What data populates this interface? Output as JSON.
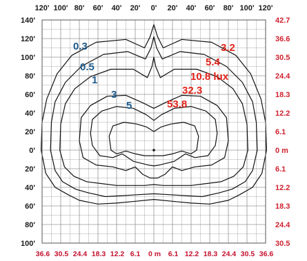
{
  "chart_data": {
    "type": "polar-isolux",
    "top_axis_labels": [
      "120'",
      "100'",
      "80'",
      "60'",
      "40'",
      "20'",
      "0'",
      "20'",
      "40'",
      "60'",
      "80'",
      "100'",
      "120'"
    ],
    "left_axis_labels": [
      "140'",
      "120'",
      "100'",
      "80'",
      "60'",
      "40'",
      "20'",
      "0'",
      "20'",
      "40'",
      "60'",
      "80'",
      "100'"
    ],
    "bottom_axis_labels": [
      "36.6",
      "30.5",
      "24.4",
      "18.3",
      "12.2",
      "6.1",
      "0 m",
      "6.1",
      "12.2",
      "18.3",
      "24.4",
      "30.5",
      "36.6"
    ],
    "right_axis_labels": [
      "42.7",
      "36.6",
      "30.5",
      "24.4",
      "18.3",
      "12.2",
      "6.1",
      "0 m",
      "6.1",
      "12.2",
      "18.3",
      "24.4",
      "30.5"
    ],
    "x_range_ft": [
      -120,
      120
    ],
    "y_range_ft": [
      -100,
      140
    ],
    "grid": true,
    "isolux_labels_fc": [
      "0.3",
      "0.5",
      "1",
      "3",
      "5"
    ],
    "isolux_labels_lux": [
      "3.2",
      "5.4",
      "10.8 lux",
      "32.3",
      "53.8"
    ],
    "isolux_levels": [
      {
        "fc": 0.3,
        "lux": 3.2
      },
      {
        "fc": 0.5,
        "lux": 5.4
      },
      {
        "fc": 1,
        "lux": 10.8
      },
      {
        "fc": 3,
        "lux": 32.3
      },
      {
        "fc": 5,
        "lux": 53.8
      }
    ],
    "contours": [
      {
        "level_fc": 0.3,
        "points": [
          [
            -120,
            30
          ],
          [
            -115,
            55
          ],
          [
            -104,
            82
          ],
          [
            -88,
            102
          ],
          [
            -62,
            116
          ],
          [
            -30,
            119
          ],
          [
            -10,
            110
          ],
          [
            -4,
            122
          ],
          [
            0,
            135
          ],
          [
            4,
            122
          ],
          [
            10,
            110
          ],
          [
            30,
            119
          ],
          [
            62,
            116
          ],
          [
            88,
            102
          ],
          [
            104,
            82
          ],
          [
            115,
            55
          ],
          [
            120,
            30
          ],
          [
            121,
            0
          ],
          [
            116,
            -25
          ],
          [
            106,
            -40
          ],
          [
            92,
            -48
          ],
          [
            80,
            -54
          ],
          [
            60,
            -58
          ],
          [
            40,
            -57
          ],
          [
            20,
            -55
          ],
          [
            0,
            -53
          ],
          [
            -20,
            -55
          ],
          [
            -40,
            -57
          ],
          [
            -60,
            -58
          ],
          [
            -80,
            -54
          ],
          [
            -92,
            -48
          ],
          [
            -106,
            -40
          ],
          [
            -116,
            -25
          ],
          [
            -121,
            0
          ],
          [
            -120,
            30
          ]
        ]
      },
      {
        "level_fc": 0.5,
        "points": [
          [
            -110,
            30
          ],
          [
            -106,
            52
          ],
          [
            -95,
            73
          ],
          [
            -78,
            90
          ],
          [
            -54,
            103
          ],
          [
            -28,
            106
          ],
          [
            -9,
            98
          ],
          [
            -3,
            110
          ],
          [
            0,
            122
          ],
          [
            3,
            110
          ],
          [
            9,
            98
          ],
          [
            28,
            106
          ],
          [
            54,
            103
          ],
          [
            78,
            90
          ],
          [
            95,
            73
          ],
          [
            106,
            52
          ],
          [
            110,
            30
          ],
          [
            111,
            0
          ],
          [
            106,
            -22
          ],
          [
            98,
            -34
          ],
          [
            84,
            -42
          ],
          [
            70,
            -46
          ],
          [
            52,
            -50
          ],
          [
            34,
            -49
          ],
          [
            18,
            -48
          ],
          [
            0,
            -47
          ],
          [
            -18,
            -48
          ],
          [
            -34,
            -49
          ],
          [
            -52,
            -50
          ],
          [
            -70,
            -46
          ],
          [
            -84,
            -42
          ],
          [
            -98,
            -34
          ],
          [
            -106,
            -22
          ],
          [
            -111,
            0
          ],
          [
            -110,
            30
          ]
        ]
      },
      {
        "level_fc": 1,
        "points": [
          [
            -100,
            28
          ],
          [
            -95,
            50
          ],
          [
            -85,
            66
          ],
          [
            -68,
            79
          ],
          [
            -46,
            87
          ],
          [
            -22,
            87
          ],
          [
            -7,
            78
          ],
          [
            -2,
            90
          ],
          [
            0,
            100
          ],
          [
            2,
            90
          ],
          [
            7,
            78
          ],
          [
            22,
            87
          ],
          [
            46,
            87
          ],
          [
            68,
            79
          ],
          [
            85,
            66
          ],
          [
            95,
            50
          ],
          [
            100,
            28
          ],
          [
            101,
            0
          ],
          [
            96,
            -18
          ],
          [
            86,
            -28
          ],
          [
            72,
            -34
          ],
          [
            56,
            -36
          ],
          [
            40,
            -38
          ],
          [
            24,
            -38
          ],
          [
            10,
            -38
          ],
          [
            0,
            -37
          ],
          [
            -10,
            -38
          ],
          [
            -24,
            -38
          ],
          [
            -40,
            -38
          ],
          [
            -56,
            -36
          ],
          [
            -72,
            -34
          ],
          [
            -86,
            -28
          ],
          [
            -96,
            -18
          ],
          [
            -101,
            0
          ],
          [
            -100,
            28
          ]
        ]
      },
      {
        "level_fc": 3,
        "points": [
          [
            -78,
            35
          ],
          [
            -68,
            48
          ],
          [
            -50,
            58
          ],
          [
            -30,
            59
          ],
          [
            -12,
            51
          ],
          [
            0,
            45
          ],
          [
            12,
            51
          ],
          [
            30,
            59
          ],
          [
            50,
            58
          ],
          [
            68,
            48
          ],
          [
            78,
            35
          ],
          [
            80,
            10
          ],
          [
            76,
            -8
          ],
          [
            62,
            -16
          ],
          [
            44,
            -18
          ],
          [
            30,
            -22
          ],
          [
            20,
            -18
          ],
          [
            12,
            -26
          ],
          [
            4,
            -30
          ],
          [
            0,
            -30
          ],
          [
            -4,
            -30
          ],
          [
            -12,
            -26
          ],
          [
            -20,
            -18
          ],
          [
            -30,
            -22
          ],
          [
            -44,
            -18
          ],
          [
            -62,
            -16
          ],
          [
            -76,
            -8
          ],
          [
            -80,
            10
          ],
          [
            -78,
            35
          ]
        ]
      },
      {
        "level_fc": 5,
        "points": [
          [
            -66,
            33
          ],
          [
            -56,
            42
          ],
          [
            -40,
            47
          ],
          [
            -22,
            45
          ],
          [
            -8,
            38
          ],
          [
            0,
            32
          ],
          [
            8,
            38
          ],
          [
            22,
            45
          ],
          [
            40,
            47
          ],
          [
            56,
            42
          ],
          [
            66,
            33
          ],
          [
            68,
            18
          ],
          [
            66,
            5
          ],
          [
            58,
            -6
          ],
          [
            44,
            -8
          ],
          [
            34,
            -4
          ],
          [
            28,
            -8
          ],
          [
            22,
            -12
          ],
          [
            14,
            -14
          ],
          [
            6,
            -16
          ],
          [
            0,
            -17
          ],
          [
            -6,
            -16
          ],
          [
            -14,
            -14
          ],
          [
            -22,
            -12
          ],
          [
            -28,
            -8
          ],
          [
            -34,
            -4
          ],
          [
            -44,
            -8
          ],
          [
            -58,
            -6
          ],
          [
            -66,
            5
          ],
          [
            -68,
            18
          ],
          [
            -66,
            33
          ]
        ]
      },
      {
        "level_fc": 10,
        "points": [
          [
            -44,
            26
          ],
          [
            -32,
            30
          ],
          [
            -18,
            28
          ],
          [
            -8,
            25
          ],
          [
            0,
            20
          ],
          [
            8,
            25
          ],
          [
            18,
            28
          ],
          [
            32,
            30
          ],
          [
            44,
            26
          ],
          [
            48,
            15
          ],
          [
            46,
            0
          ],
          [
            40,
            -4
          ],
          [
            30,
            -1
          ],
          [
            20,
            -4
          ],
          [
            10,
            -6
          ],
          [
            0,
            -6
          ],
          [
            -10,
            -6
          ],
          [
            -20,
            -4
          ],
          [
            -30,
            -1
          ],
          [
            -40,
            -4
          ],
          [
            -46,
            0
          ],
          [
            -48,
            15
          ],
          [
            -44,
            26
          ]
        ]
      }
    ],
    "colors": {
      "fc_labels": "#1b5a8c",
      "lux_labels": "#e2231a",
      "contours": "#111111",
      "grid": "#8a8a8a"
    }
  }
}
